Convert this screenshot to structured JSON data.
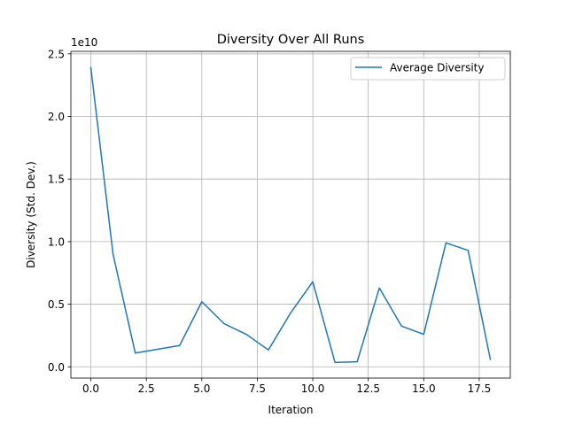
{
  "chart_data": {
    "type": "line",
    "title": "Diversity Over All Runs",
    "xlabel": "Iteration",
    "ylabel": "Diversity (Std. Dev.)",
    "y_offset_label": "1e10",
    "xlim": [
      -0.9,
      18.9
    ],
    "ylim": [
      -0.09,
      2.52
    ],
    "x_ticks": [
      0.0,
      2.5,
      5.0,
      7.5,
      10.0,
      12.5,
      15.0,
      17.5
    ],
    "x_tick_labels": [
      "0.0",
      "2.5",
      "5.0",
      "7.5",
      "10.0",
      "12.5",
      "15.0",
      "17.5"
    ],
    "y_ticks": [
      0.0,
      0.5,
      1.0,
      1.5,
      2.0,
      2.5
    ],
    "y_tick_labels": [
      "0.0",
      "0.5",
      "1.0",
      "1.5",
      "2.0",
      "2.5"
    ],
    "grid": true,
    "legend_position": "top-right",
    "series": [
      {
        "name": "Average Diversity",
        "color": "#1f77b4",
        "x": [
          0,
          1,
          2,
          3,
          4,
          5,
          6,
          7,
          8,
          9,
          10,
          11,
          12,
          13,
          14,
          15,
          16,
          17,
          18
        ],
        "y": [
          2.39,
          0.9,
          0.11,
          0.14,
          0.17,
          0.52,
          0.345,
          0.26,
          0.135,
          0.43,
          0.68,
          0.035,
          0.04,
          0.63,
          0.325,
          0.26,
          0.99,
          0.93,
          0.06
        ]
      }
    ]
  }
}
